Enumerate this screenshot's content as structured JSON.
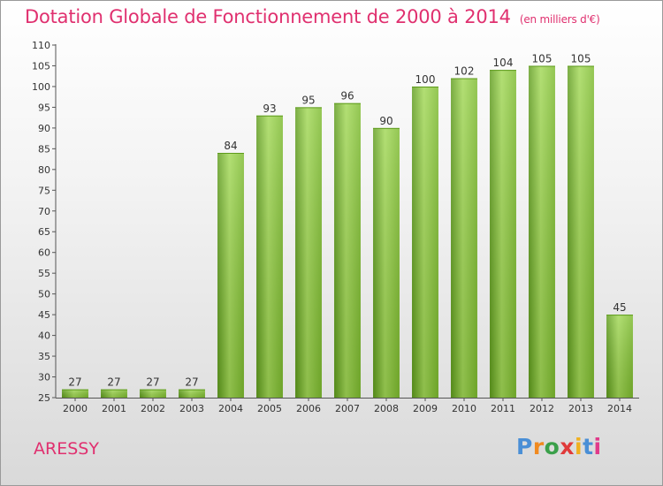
{
  "title": "Dotation Globale de Fonctionnement de 2000 à 2014",
  "subtitle": "(en milliers d'€)",
  "place": "ARESSY",
  "logo": {
    "text": "Proxiti",
    "colors": [
      "#4a8fd6",
      "#f08a20",
      "#3aa04a",
      "#e03a3a",
      "#f0b020",
      "#4a8fd6",
      "#e03a8a"
    ]
  },
  "colors": {
    "bar": "#7cba2e",
    "bar_light": "#a2d856",
    "bar_dark": "#5e9b1c",
    "title": "#e0306f"
  },
  "chart_data": {
    "type": "bar",
    "categories": [
      "2000",
      "2001",
      "2002",
      "2003",
      "2004",
      "2005",
      "2006",
      "2007",
      "2008",
      "2009",
      "2010",
      "2011",
      "2012",
      "2013",
      "2014"
    ],
    "values": [
      27,
      27,
      27,
      27,
      84,
      93,
      95,
      96,
      90,
      100,
      102,
      104,
      105,
      105,
      45
    ],
    "ylim": [
      25,
      110
    ],
    "yticks": [
      25,
      30,
      35,
      40,
      45,
      50,
      55,
      60,
      65,
      70,
      75,
      80,
      85,
      90,
      95,
      100,
      105,
      110
    ],
    "grid": false
  }
}
